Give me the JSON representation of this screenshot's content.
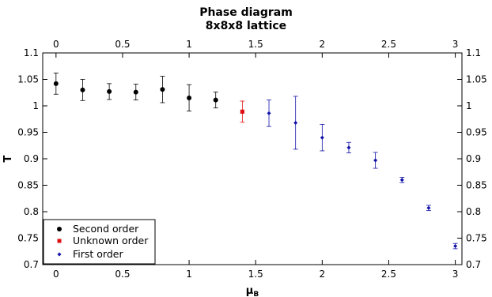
{
  "chart_data": {
    "type": "scatter",
    "title": "Phase diagram",
    "subtitle": "8x8x8 lattice",
    "xlabel": "μ",
    "xlabel_sub": "B",
    "ylabel": "T",
    "xlim": [
      -0.1,
      3.05
    ],
    "ylim": [
      0.7,
      1.1
    ],
    "xticks": [
      0,
      0.5,
      1,
      1.5,
      2,
      2.5,
      3
    ],
    "xtick_labels": [
      "0",
      "0.5",
      "1",
      "1.5",
      "2",
      "2.5",
      "3"
    ],
    "yticks": [
      0.7,
      0.75,
      0.8,
      0.85,
      0.9,
      0.95,
      1,
      1.05,
      1.1
    ],
    "ytick_labels": [
      "0.7",
      "0.75",
      "0.8",
      "0.85",
      "0.9",
      "0.95",
      "1",
      "1.05",
      "1.1"
    ],
    "mirror_axes": true,
    "grid": false,
    "legend_position": "bottom-left",
    "series": [
      {
        "name": "Second order",
        "color": "#000000",
        "marker": "circle",
        "points": [
          {
            "x": 0.0,
            "y": 1.042,
            "err": 0.02
          },
          {
            "x": 0.2,
            "y": 1.03,
            "err": 0.02
          },
          {
            "x": 0.4,
            "y": 1.027,
            "err": 0.015
          },
          {
            "x": 0.6,
            "y": 1.026,
            "err": 0.015
          },
          {
            "x": 0.8,
            "y": 1.031,
            "err": 0.025
          },
          {
            "x": 1.0,
            "y": 1.015,
            "err": 0.025
          },
          {
            "x": 1.2,
            "y": 1.011,
            "err": 0.015
          }
        ]
      },
      {
        "name": "Unknown order",
        "color": "#dd1111",
        "marker": "square",
        "points": [
          {
            "x": 1.4,
            "y": 0.989,
            "err": 0.02
          }
        ]
      },
      {
        "name": "First order",
        "color": "#1111aa",
        "marker": "diamond",
        "points": [
          {
            "x": 1.6,
            "y": 0.986,
            "err": 0.025
          },
          {
            "x": 1.8,
            "y": 0.968,
            "err": 0.05
          },
          {
            "x": 2.0,
            "y": 0.94,
            "err": 0.025
          },
          {
            "x": 2.2,
            "y": 0.921,
            "err": 0.01
          },
          {
            "x": 2.4,
            "y": 0.897,
            "err": 0.015
          },
          {
            "x": 2.6,
            "y": 0.86,
            "err": 0.005
          },
          {
            "x": 2.8,
            "y": 0.807,
            "err": 0.005
          },
          {
            "x": 3.0,
            "y": 0.735,
            "err": 0.005
          }
        ]
      }
    ]
  }
}
